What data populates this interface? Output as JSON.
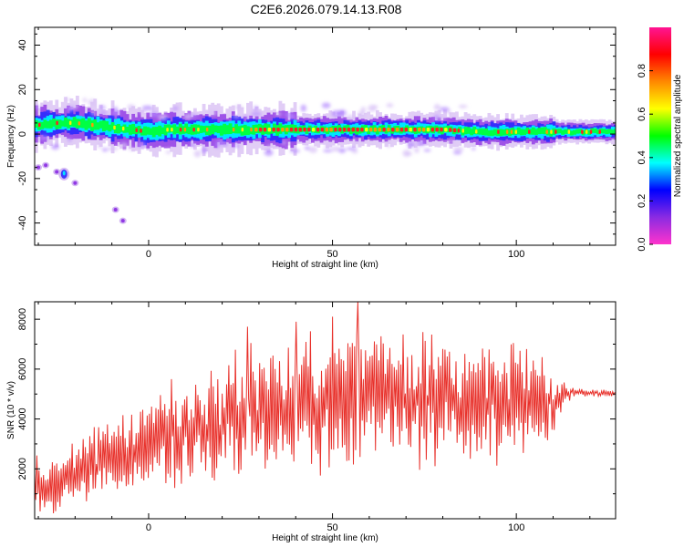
{
  "title": "C2E6.2026.079.14.13.R08",
  "chart_data": [
    {
      "type": "heatmap",
      "xlabel": "Height of straight line (km)",
      "ylabel": "Frequency (Hz)",
      "xlim": [
        -31,
        127
      ],
      "ylim": [
        -50,
        48
      ],
      "xticks": [
        0,
        50,
        100
      ],
      "yticks": [
        -40,
        -20,
        0,
        20,
        40
      ],
      "ridge": {
        "x": [
          -31,
          -25,
          -20,
          -15,
          -10,
          -5,
          0,
          5,
          10,
          15,
          20,
          30,
          40,
          50,
          60,
          70,
          80,
          90,
          100,
          110,
          120,
          127
        ],
        "frequency": [
          4,
          5,
          5,
          4,
          3,
          2,
          1,
          2,
          2,
          2,
          2,
          2,
          2,
          2,
          2,
          2,
          2,
          1,
          1,
          1,
          1,
          1
        ]
      },
      "outlier_blobs": [
        {
          "x": -30,
          "frequency": -15
        },
        {
          "x": -28,
          "frequency": -14
        },
        {
          "x": -25,
          "frequency": -17
        },
        {
          "x": -23,
          "frequency": -18
        },
        {
          "x": -20,
          "frequency": -22
        },
        {
          "x": -9,
          "frequency": -34
        },
        {
          "x": -7,
          "frequency": -39
        }
      ],
      "colorbar": {
        "label": "Normalized spectral amplitude",
        "range": [
          0,
          1
        ],
        "ticks": [
          "0.0",
          "0.2",
          "0.4",
          "0.6",
          "0.8"
        ],
        "colors": [
          "#ff33cc",
          "#8a2be2",
          "#0000ff",
          "#00ffff",
          "#00ff00",
          "#ffff00",
          "#ff8800",
          "#ff0000",
          "#ff1493"
        ]
      },
      "grid": false
    },
    {
      "type": "line",
      "xlabel": "Height of straight line (km)",
      "ylabel": "SNR (10 * v/v)",
      "xlim": [
        -31,
        127
      ],
      "ylim": [
        0,
        8700
      ],
      "xticks": [
        0,
        50,
        100
      ],
      "yticks": [
        2000,
        4000,
        6000,
        8000
      ],
      "series": [
        {
          "color": "#e8302a",
          "envelope": {
            "x": [
              -31,
              -27,
              -22,
              -15,
              -5,
              5,
              15,
              27,
              35,
              45,
              57,
              65,
              75,
              85,
              95,
              105,
              110,
              115,
              120,
              127
            ],
            "base": [
              1600,
              1200,
              1600,
              2200,
              2900,
              3300,
              3700,
              4100,
              4400,
              4700,
              4900,
              4900,
              4800,
              4700,
              4600,
              4600,
              4500,
              5100,
              5050,
              5000
            ],
            "amplitude": [
              1000,
              900,
              1000,
              1100,
              1400,
              1700,
              1800,
              2200,
              2100,
              2300,
              2400,
              2200,
              2100,
              2000,
              1900,
              1700,
              1200,
              150,
              120,
              120
            ]
          },
          "peaks": [
            {
              "x": 27,
              "y": 7700
            },
            {
              "x": 50,
              "y": 8100
            },
            {
              "x": 57,
              "y": 8700
            },
            {
              "x": 40,
              "y": 7900
            }
          ]
        }
      ],
      "grid": false
    }
  ]
}
